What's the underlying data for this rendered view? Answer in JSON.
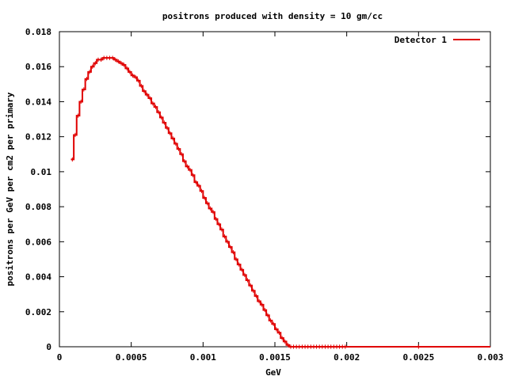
{
  "chart_data": {
    "type": "line",
    "title": "positrons produced with density = 10 gm/cc",
    "xlabel": "GeV",
    "ylabel": "positrons per GeV per cm2 per primary",
    "xlim": [
      0,
      0.003
    ],
    "ylim": [
      0,
      0.018
    ],
    "x_ticks": [
      0,
      0.0005,
      0.001,
      0.0015,
      0.002,
      0.0025,
      0.003
    ],
    "x_tick_labels": [
      "0",
      "0.0005",
      "0.001",
      "0.0015",
      "0.002",
      "0.0025",
      "0.003"
    ],
    "y_ticks": [
      0,
      0.002,
      0.004,
      0.006,
      0.008,
      0.01,
      0.012,
      0.014,
      0.016,
      0.018
    ],
    "y_tick_labels": [
      "0",
      "0.002",
      "0.004",
      "0.006",
      "0.008",
      "0.01",
      "0.012",
      "0.014",
      "0.016",
      "0.018"
    ],
    "grid": false,
    "legend_position": "top-right",
    "step_style": "histogram-steps-with-small-error-bars",
    "series": [
      {
        "name": "Detector 1",
        "color": "#e00000",
        "x": [
          8e-05,
          0.0001,
          0.00012,
          0.00014,
          0.00016,
          0.00018,
          0.0002,
          0.00022,
          0.00024,
          0.00026,
          0.00028,
          0.0003,
          0.00032,
          0.00034,
          0.00036,
          0.00038,
          0.0004,
          0.00042,
          0.00044,
          0.00046,
          0.00048,
          0.0005,
          0.00052,
          0.00054,
          0.00056,
          0.00058,
          0.0006,
          0.00062,
          0.00064,
          0.00066,
          0.00068,
          0.0007,
          0.00072,
          0.00074,
          0.00076,
          0.00078,
          0.0008,
          0.00082,
          0.00084,
          0.00086,
          0.00088,
          0.0009,
          0.00092,
          0.00094,
          0.00096,
          0.00098,
          0.001,
          0.00102,
          0.00104,
          0.00106,
          0.00108,
          0.0011,
          0.00112,
          0.00114,
          0.00116,
          0.00118,
          0.0012,
          0.00122,
          0.00124,
          0.00126,
          0.00128,
          0.0013,
          0.00132,
          0.00134,
          0.00136,
          0.00138,
          0.0014,
          0.00142,
          0.00144,
          0.00146,
          0.00148,
          0.0015,
          0.00152,
          0.00154,
          0.00156,
          0.00158,
          0.0016,
          0.00162,
          0.00164,
          0.00166,
          0.00168,
          0.0017,
          0.00172,
          0.00174,
          0.00176,
          0.00178,
          0.0018,
          0.00182,
          0.00184,
          0.00186,
          0.00188,
          0.0019,
          0.00192,
          0.00194,
          0.00196,
          0.00198,
          0.002,
          0.003
        ],
        "y": [
          0.0107,
          0.0121,
          0.0132,
          0.014,
          0.0147,
          0.0153,
          0.0157,
          0.016,
          0.0162,
          0.0164,
          0.0164,
          0.0165,
          0.0165,
          0.0165,
          0.0165,
          0.0164,
          0.0163,
          0.0162,
          0.0161,
          0.0159,
          0.0157,
          0.0155,
          0.0154,
          0.0152,
          0.0149,
          0.0146,
          0.0144,
          0.0142,
          0.0139,
          0.0137,
          0.0134,
          0.0131,
          0.0128,
          0.0125,
          0.0122,
          0.0119,
          0.0116,
          0.0113,
          0.011,
          0.0106,
          0.0103,
          0.0101,
          0.0098,
          0.0094,
          0.0092,
          0.0089,
          0.0085,
          0.0082,
          0.0079,
          0.0077,
          0.0073,
          0.007,
          0.0067,
          0.0063,
          0.006,
          0.0057,
          0.0054,
          0.005,
          0.0047,
          0.0044,
          0.0041,
          0.0038,
          0.0035,
          0.0032,
          0.0029,
          0.0026,
          0.0024,
          0.0021,
          0.0018,
          0.0015,
          0.0013,
          0.001,
          0.0008,
          0.0005,
          0.0003,
          0.0001,
          0.0,
          0.0,
          0.0,
          0.0,
          0.0,
          0.0,
          0.0,
          0.0,
          0.0,
          0.0,
          0.0,
          0.0,
          0.0,
          0.0,
          0.0,
          0.0,
          0.0,
          0.0,
          0.0,
          0.0,
          0.0,
          0.0
        ]
      }
    ]
  }
}
